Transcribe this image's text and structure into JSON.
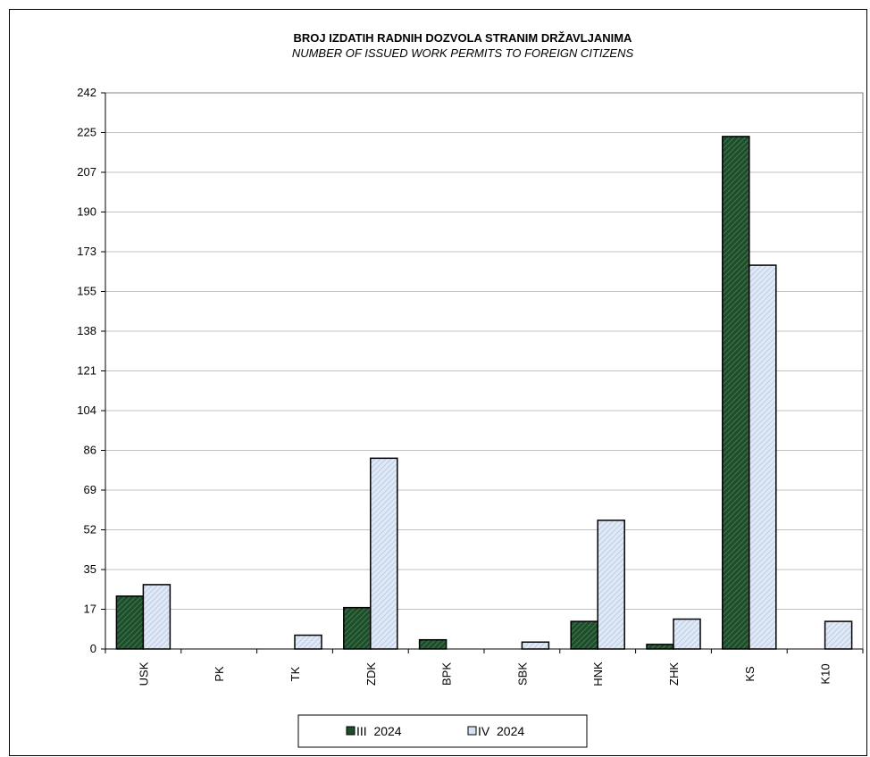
{
  "chart_data": {
    "type": "bar",
    "title": "BROJ IZDATIH RADNIH DOZVOLA STRANIM DRŽAVLJANIMA",
    "subtitle": "NUMBER OF ISSUED WORK PERMITS TO FOREIGN CITIZENS",
    "categories": [
      "USK",
      "PK",
      "TK",
      "ZDK",
      "BPK",
      "SBK",
      "HNK",
      "ZHK",
      "KS",
      "K10"
    ],
    "y_ticks": [
      "0",
      "17",
      "35",
      "52",
      "69",
      "86",
      "104",
      "121",
      "138",
      "155",
      "173",
      "190",
      "207",
      "225",
      "242"
    ],
    "ylim": [
      0,
      242
    ],
    "grid": "horizontal",
    "legend_position": "bottom",
    "series": [
      {
        "name": "III  2024",
        "color": "#1e4d2b",
        "values": [
          23,
          0,
          0,
          18,
          4,
          0,
          12,
          2,
          223,
          0
        ]
      },
      {
        "name": "IV  2024",
        "color": "#d7e3f4",
        "values": [
          28,
          0,
          6,
          83,
          0,
          3,
          56,
          13,
          167,
          12
        ]
      }
    ]
  }
}
